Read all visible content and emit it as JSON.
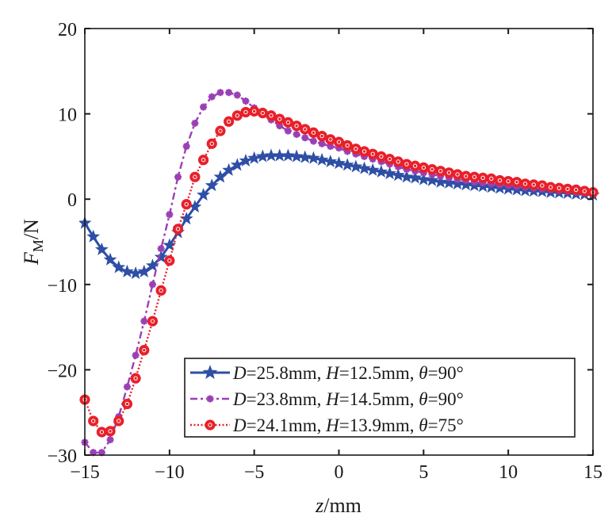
{
  "chart_data": {
    "type": "line",
    "title": "",
    "xlabel": "z/mm",
    "xlabel_var": "z",
    "xlabel_unit": "/mm",
    "ylabel": "F_M/N",
    "ylabel_var": "F",
    "ylabel_sub": "M",
    "ylabel_unit": "/N",
    "xlim": [
      -15,
      15
    ],
    "ylim": [
      -30,
      20
    ],
    "xticks": [
      -15,
      -10,
      -5,
      0,
      5,
      10,
      15
    ],
    "yticks": [
      -30,
      -20,
      -10,
      0,
      10,
      20
    ],
    "xtick_labels": [
      "−15",
      "−10",
      "−5",
      "0",
      "5",
      "10",
      "15"
    ],
    "ytick_labels": [
      "−30",
      "−20",
      "−10",
      "0",
      "10",
      "20"
    ],
    "grid": false,
    "legend_position": "bottom-right",
    "series": [
      {
        "name": "D=25.8mm, H=12.5mm, θ=90°",
        "legend_parts": [
          "D",
          "=25.8mm, ",
          "H",
          "=12.5mm, ",
          "θ",
          "=90°"
        ],
        "color": "#2e4fa5",
        "line_style": "solid",
        "marker": "star",
        "x": [
          -15,
          -14.5,
          -14,
          -13.5,
          -13,
          -12.5,
          -12,
          -11.5,
          -11,
          -10.5,
          -10,
          -9.5,
          -9,
          -8.5,
          -8,
          -7.5,
          -7,
          -6.5,
          -6,
          -5.5,
          -5,
          -4.5,
          -4,
          -3.5,
          -3,
          -2.5,
          -2,
          -1.5,
          -1,
          -0.5,
          0,
          0.5,
          1,
          1.5,
          2,
          2.5,
          3,
          3.5,
          4,
          4.5,
          5,
          5.5,
          6,
          6.5,
          7,
          7.5,
          8,
          8.5,
          9,
          9.5,
          10,
          10.5,
          11,
          11.5,
          12,
          12.5,
          13,
          13.5,
          14,
          14.5,
          15
        ],
        "y": [
          -2.8,
          -4.4,
          -5.9,
          -7.1,
          -8.0,
          -8.5,
          -8.7,
          -8.5,
          -7.8,
          -6.8,
          -5.4,
          -3.9,
          -2.3,
          -0.9,
          0.5,
          1.6,
          2.6,
          3.4,
          4.0,
          4.5,
          4.8,
          5.0,
          5.1,
          5.1,
          5.1,
          5.0,
          4.9,
          4.8,
          4.6,
          4.4,
          4.2,
          4.0,
          3.8,
          3.6,
          3.4,
          3.2,
          3.0,
          2.8,
          2.6,
          2.5,
          2.3,
          2.2,
          2.0,
          1.9,
          1.8,
          1.7,
          1.6,
          1.5,
          1.4,
          1.3,
          1.2,
          1.1,
          1.0,
          0.95,
          0.9,
          0.8,
          0.75,
          0.7,
          0.6,
          0.55,
          0.5
        ]
      },
      {
        "name": "D=23.8mm, H=14.5mm, θ=90°",
        "legend_parts": [
          "D",
          "=23.8mm, ",
          "H",
          "=14.5mm, ",
          "θ",
          "=90°"
        ],
        "color": "#9b3fb5",
        "line_style": "dashdot",
        "marker": "asterisk",
        "x": [
          -15,
          -14.5,
          -14,
          -13.5,
          -13,
          -12.5,
          -12,
          -11.5,
          -11,
          -10.5,
          -10,
          -9.5,
          -9,
          -8.5,
          -8,
          -7.5,
          -7,
          -6.5,
          -6,
          -5.5,
          -5,
          -4.5,
          -4,
          -3.5,
          -3,
          -2.5,
          -2,
          -1.5,
          -1,
          -0.5,
          0,
          0.5,
          1,
          1.5,
          2,
          2.5,
          3,
          3.5,
          4,
          4.5,
          5,
          5.5,
          6,
          6.5,
          7,
          7.5,
          8,
          8.5,
          9,
          9.5,
          10,
          10.5,
          11,
          11.5,
          12,
          12.5,
          13,
          13.5,
          14,
          14.5,
          15
        ],
        "y": [
          -28.5,
          -29.7,
          -29.7,
          -28.2,
          -25.5,
          -22.0,
          -18.3,
          -14.3,
          -10.0,
          -5.8,
          -1.8,
          2.6,
          6.2,
          8.9,
          10.8,
          12.0,
          12.5,
          12.5,
          12.2,
          11.5,
          10.7,
          10.0,
          9.3,
          8.6,
          8.0,
          7.6,
          7.2,
          6.8,
          6.5,
          6.2,
          6.0,
          5.6,
          5.3,
          5.0,
          4.7,
          4.4,
          4.1,
          3.8,
          3.5,
          3.3,
          3.1,
          2.9,
          2.7,
          2.5,
          2.3,
          2.2,
          2.0,
          1.9,
          1.8,
          1.7,
          1.6,
          1.5,
          1.4,
          1.3,
          1.2,
          1.1,
          1.0,
          0.9,
          0.8,
          0.7,
          0.6
        ]
      },
      {
        "name": "D=24.1mm, H=13.9mm, θ=75°",
        "legend_parts": [
          "D",
          "=24.1mm, ",
          "H",
          "=13.9mm, ",
          "θ",
          "=75°"
        ],
        "color": "#e8202a",
        "line_style": "dotted",
        "marker": "circle",
        "x": [
          -15,
          -14.5,
          -14,
          -13.5,
          -13,
          -12.5,
          -12,
          -11.5,
          -11,
          -10.5,
          -10,
          -9.5,
          -9,
          -8.5,
          -8,
          -7.5,
          -7,
          -6.5,
          -6,
          -5.5,
          -5,
          -4.5,
          -4,
          -3.5,
          -3,
          -2.5,
          -2,
          -1.5,
          -1,
          -0.5,
          0,
          0.5,
          1,
          1.5,
          2,
          2.5,
          3,
          3.5,
          4,
          4.5,
          5,
          5.5,
          6,
          6.5,
          7,
          7.5,
          8,
          8.5,
          9,
          9.5,
          10,
          10.5,
          11,
          11.5,
          12,
          12.5,
          13,
          13.5,
          14,
          14.5,
          15
        ],
        "y": [
          -23.5,
          -26.0,
          -27.3,
          -27.2,
          -26.0,
          -24.0,
          -21.0,
          -17.7,
          -14.3,
          -10.7,
          -7.2,
          -3.5,
          -0.6,
          2.6,
          4.6,
          6.5,
          8.0,
          9.1,
          9.8,
          10.2,
          10.3,
          10.1,
          9.8,
          9.4,
          9.0,
          8.6,
          8.2,
          7.8,
          7.4,
          7.0,
          6.7,
          6.3,
          5.9,
          5.6,
          5.3,
          5.0,
          4.7,
          4.4,
          4.1,
          3.9,
          3.7,
          3.5,
          3.3,
          3.1,
          2.9,
          2.7,
          2.6,
          2.5,
          2.4,
          2.2,
          2.1,
          2.0,
          1.8,
          1.7,
          1.6,
          1.4,
          1.3,
          1.2,
          1.1,
          0.95,
          0.8
        ]
      }
    ]
  }
}
